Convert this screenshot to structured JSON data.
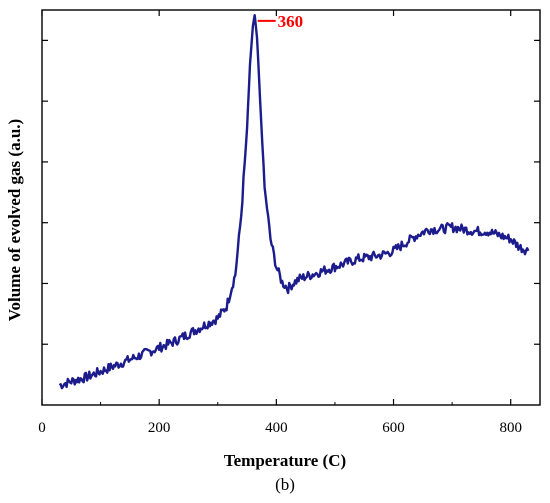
{
  "chart_data": {
    "type": "line",
    "title": "",
    "xlabel": "Temperature (C)",
    "ylabel": "Volume of evolved gas (a.u.)",
    "panel_label": "(b)",
    "xlim": [
      0,
      850
    ],
    "ylim": [
      0,
      1
    ],
    "x_ticks": [
      0,
      200,
      400,
      600,
      800
    ],
    "y_tick_labels_shown": false,
    "grid": false,
    "legend": "none",
    "line_color": "#1c1c8c",
    "annotation": {
      "text": "360",
      "x": 360,
      "color": "#ff0000"
    },
    "series": [
      {
        "x": [
          30,
          50,
          75,
          100,
          125,
          150,
          175,
          200,
          225,
          250,
          275,
          300,
          315,
          330,
          340,
          350,
          355,
          360,
          363,
          367,
          372,
          380,
          390,
          400,
          410,
          420,
          430,
          440,
          460,
          480,
          500,
          520,
          540,
          560,
          580,
          600,
          620,
          640,
          660,
          680,
          700,
          720,
          740,
          760,
          780,
          800,
          815,
          830
        ],
        "y": [
          0.05,
          0.06,
          0.07,
          0.085,
          0.1,
          0.115,
          0.13,
          0.145,
          0.16,
          0.18,
          0.2,
          0.22,
          0.25,
          0.33,
          0.48,
          0.7,
          0.86,
          0.96,
          0.985,
          0.93,
          0.78,
          0.55,
          0.42,
          0.35,
          0.31,
          0.295,
          0.31,
          0.32,
          0.33,
          0.34,
          0.35,
          0.36,
          0.37,
          0.375,
          0.38,
          0.39,
          0.41,
          0.43,
          0.445,
          0.445,
          0.45,
          0.445,
          0.44,
          0.44,
          0.43,
          0.42,
          0.4,
          0.39
        ]
      }
    ]
  }
}
